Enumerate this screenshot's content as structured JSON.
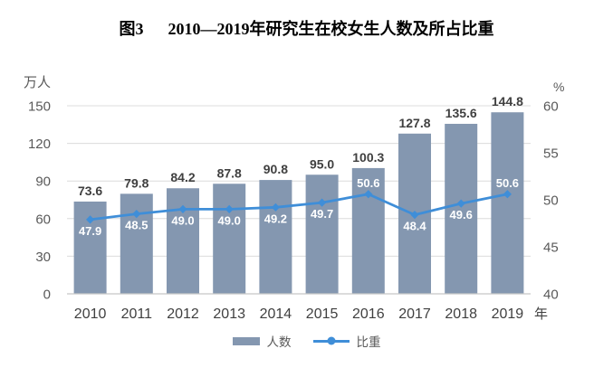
{
  "title": {
    "figure_label": "图3",
    "text": "2010—2019年研究生在校女生人数及所占比重"
  },
  "chart_data": {
    "type": "combo-bar-line",
    "categories": [
      "2010",
      "2011",
      "2012",
      "2013",
      "2014",
      "2015",
      "2016",
      "2017",
      "2018",
      "2019"
    ],
    "series": [
      {
        "name": "人数",
        "type": "bar",
        "axis": "left",
        "values": [
          73.6,
          79.8,
          84.2,
          87.8,
          90.8,
          95.0,
          100.3,
          127.8,
          135.6,
          144.8
        ]
      },
      {
        "name": "比重",
        "type": "line",
        "axis": "right",
        "values": [
          47.9,
          48.5,
          49.0,
          49.0,
          49.2,
          49.7,
          50.6,
          48.4,
          49.6,
          50.6
        ],
        "label_side": [
          "below",
          "below",
          "below",
          "below",
          "below",
          "below",
          "above",
          "below",
          "below",
          "above"
        ]
      }
    ],
    "left_axis": {
      "unit": "万人",
      "min": 0,
      "max": 150,
      "ticks": [
        150,
        120,
        90,
        60,
        30,
        0
      ]
    },
    "right_axis": {
      "unit": "%",
      "min": 40,
      "max": 60,
      "ticks": [
        60,
        55,
        50,
        45,
        40
      ]
    },
    "x_axis_unit": "年",
    "legend_position": "bottom",
    "grid": true
  },
  "colors": {
    "bar": "#8497b0",
    "line": "#3f8ed8",
    "bar_label": "#404040",
    "line_label": "#ffffff",
    "tick_label": "#595959",
    "year_label": "#404040",
    "grid": "#dcdcdc",
    "axis_line": "#c8c8c8",
    "title": "#000000"
  }
}
